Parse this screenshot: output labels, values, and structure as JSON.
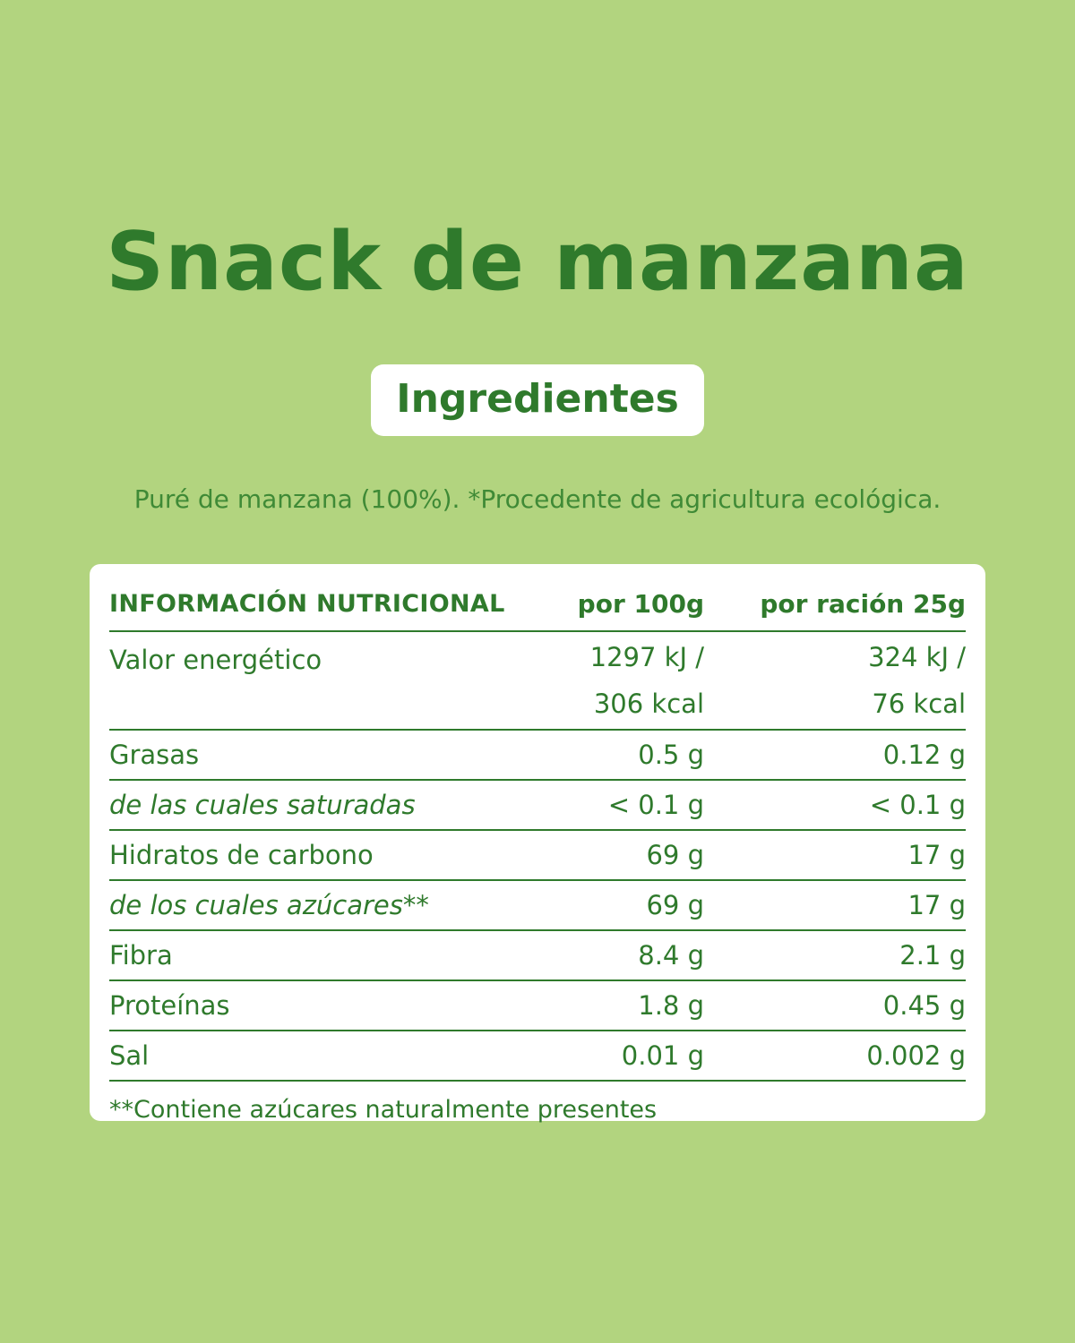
{
  "title": "Snack de manzana",
  "badge": "Ingredientes",
  "ingredients": "Puré de manzana (100%). *Procedente de agricultura ecológica.",
  "table": {
    "headers": [
      "INFORMACIÓN NUTRICIONAL",
      "por 100g",
      "por ración 25g"
    ],
    "energy": {
      "label": "Valor energético",
      "per100_kj": "1297 kJ /",
      "per100_kcal": "306 kcal",
      "serving_kj": "324 kJ /",
      "serving_kcal": "76 kcal"
    },
    "rows": [
      {
        "label": "Grasas",
        "per100": "0.5 g",
        "serving": "0.12 g"
      },
      {
        "label": "de las cuales saturadas",
        "per100": "< 0.1 g",
        "serving": "< 0.1 g"
      },
      {
        "label": "Hidratos de carbono",
        "per100": "69 g",
        "serving": "17 g"
      },
      {
        "label": "de los cuales azúcares**",
        "per100": "69 g",
        "serving": "17 g"
      },
      {
        "label": "Fibra",
        "per100": "8.4 g",
        "serving": "2.1 g"
      },
      {
        "label": "Proteínas",
        "per100": "1.8 g",
        "serving": "0.45 g"
      },
      {
        "label": "Sal",
        "per100": "0.01 g",
        "serving": "0.002 g"
      }
    ],
    "footnote": "**Contiene azúcares naturalmente presentes"
  },
  "colors": {
    "background": "#b2d47f",
    "text": "#2f7a2c",
    "card": "#ffffff"
  }
}
